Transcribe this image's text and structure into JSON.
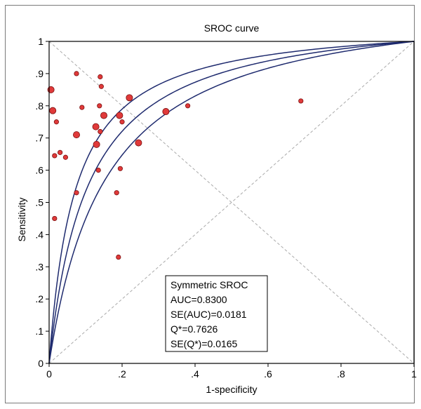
{
  "chart_data": {
    "type": "scatter",
    "title": "SROC curve",
    "xlabel": "1-specificity",
    "ylabel": "Sensitivity",
    "xlim": [
      0,
      1
    ],
    "ylim": [
      0,
      1
    ],
    "grid": "off",
    "x_ticks": [
      0,
      0.2,
      0.4,
      0.6,
      0.8,
      1
    ],
    "x_tick_labels": [
      "0",
      ".2",
      ".4",
      ".6",
      ".8",
      "1"
    ],
    "y_ticks": [
      0,
      0.1,
      0.2,
      0.3,
      0.4,
      0.5,
      0.6,
      0.7,
      0.8,
      0.9,
      1
    ],
    "y_tick_labels": [
      "0",
      ".1",
      ".2",
      ".3",
      ".4",
      ".5",
      ".6",
      ".7",
      ".8",
      ".9",
      "1"
    ],
    "colors": {
      "points": "#e03a3a",
      "point_outline": "#7a1010",
      "curves": "#1e2a6e",
      "reference_lines": "#aaaaaa"
    },
    "points": [
      {
        "x": 0.005,
        "y": 0.85,
        "size": "large"
      },
      {
        "x": 0.01,
        "y": 0.785,
        "size": "large"
      },
      {
        "x": 0.015,
        "y": 0.645,
        "size": "small"
      },
      {
        "x": 0.015,
        "y": 0.45,
        "size": "small"
      },
      {
        "x": 0.02,
        "y": 0.75,
        "size": "small"
      },
      {
        "x": 0.03,
        "y": 0.655,
        "size": "small"
      },
      {
        "x": 0.045,
        "y": 0.64,
        "size": "small"
      },
      {
        "x": 0.075,
        "y": 0.9,
        "size": "small"
      },
      {
        "x": 0.075,
        "y": 0.71,
        "size": "large"
      },
      {
        "x": 0.075,
        "y": 0.53,
        "size": "small"
      },
      {
        "x": 0.09,
        "y": 0.795,
        "size": "small"
      },
      {
        "x": 0.128,
        "y": 0.735,
        "size": "large"
      },
      {
        "x": 0.13,
        "y": 0.68,
        "size": "large"
      },
      {
        "x": 0.135,
        "y": 0.6,
        "size": "small"
      },
      {
        "x": 0.138,
        "y": 0.8,
        "size": "small"
      },
      {
        "x": 0.14,
        "y": 0.89,
        "size": "small"
      },
      {
        "x": 0.14,
        "y": 0.72,
        "size": "small"
      },
      {
        "x": 0.143,
        "y": 0.86,
        "size": "small"
      },
      {
        "x": 0.15,
        "y": 0.77,
        "size": "large"
      },
      {
        "x": 0.185,
        "y": 0.53,
        "size": "small"
      },
      {
        "x": 0.19,
        "y": 0.33,
        "size": "small"
      },
      {
        "x": 0.193,
        "y": 0.77,
        "size": "large"
      },
      {
        "x": 0.195,
        "y": 0.605,
        "size": "small"
      },
      {
        "x": 0.2,
        "y": 0.75,
        "size": "small"
      },
      {
        "x": 0.22,
        "y": 0.825,
        "size": "large"
      },
      {
        "x": 0.245,
        "y": 0.685,
        "size": "large"
      },
      {
        "x": 0.32,
        "y": 0.782,
        "size": "large"
      },
      {
        "x": 0.38,
        "y": 0.8,
        "size": "small"
      },
      {
        "x": 0.69,
        "y": 0.815,
        "size": "small"
      }
    ],
    "legend": {
      "title": "Symmetric SROC",
      "lines": [
        "AUC=0.8300",
        "SE(AUC)=0.0181",
        "Q*=0.7626",
        "SE(Q*)=0.0165"
      ],
      "placement": "bottom-right"
    }
  }
}
